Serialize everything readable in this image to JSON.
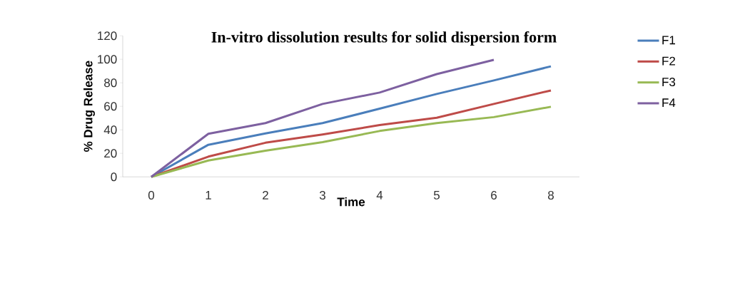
{
  "chart_data": {
    "type": "line",
    "title": "In-vitro dissolution results for solid dispersion form",
    "xlabel": "Time",
    "ylabel": "% Drug Release",
    "categories": [
      "0",
      "1",
      "2",
      "3",
      "4",
      "5",
      "6",
      "8"
    ],
    "series": [
      {
        "name": "F1",
        "color": "#4a7ebb",
        "values": [
          0,
          27.3,
          36.9,
          45.7,
          58,
          70.5,
          82,
          94
        ]
      },
      {
        "name": "F2",
        "color": "#be4b48",
        "values": [
          0,
          17.2,
          29,
          36,
          44,
          50.3,
          62,
          73.5
        ]
      },
      {
        "name": "F3",
        "color": "#98b954",
        "values": [
          0,
          13.9,
          22.2,
          29.5,
          39,
          45.7,
          50.8,
          59.6
        ]
      },
      {
        "name": "F4",
        "color": "#7d60a0",
        "values": [
          0,
          36.6,
          45.7,
          62,
          71.7,
          87.4,
          99.5,
          null
        ]
      }
    ],
    "ylim": [
      0,
      120
    ],
    "yticks": [
      0,
      20,
      40,
      60,
      80,
      100,
      120
    ],
    "grid": false,
    "legend": "right",
    "marker": "none",
    "line_style": "solid"
  }
}
